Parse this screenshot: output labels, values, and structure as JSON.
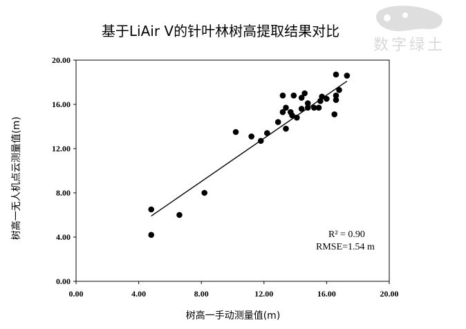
{
  "chart_data": {
    "type": "scatter",
    "title": "基于LiAir V的针叶林树高提取结果对比",
    "xlabel": "树高一手动测量值(m)",
    "ylabel": "树高一无人机点云测量值(m)",
    "xlim": [
      0,
      20
    ],
    "ylim": [
      0,
      20
    ],
    "xticks": [
      "0.00",
      "4.00",
      "8.00",
      "12.00",
      "16.00",
      "20.00"
    ],
    "yticks": [
      "0.00",
      "4.00",
      "8.00",
      "12.00",
      "16.00",
      "20.00"
    ],
    "grid": false,
    "legend": "none",
    "points": [
      {
        "x": 4.8,
        "y": 6.5
      },
      {
        "x": 4.8,
        "y": 4.2
      },
      {
        "x": 6.6,
        "y": 6.0
      },
      {
        "x": 8.2,
        "y": 8.0
      },
      {
        "x": 10.2,
        "y": 13.5
      },
      {
        "x": 11.2,
        "y": 13.1
      },
      {
        "x": 11.8,
        "y": 12.7
      },
      {
        "x": 12.2,
        "y": 13.4
      },
      {
        "x": 12.9,
        "y": 14.4
      },
      {
        "x": 13.2,
        "y": 15.3
      },
      {
        "x": 13.4,
        "y": 15.7
      },
      {
        "x": 13.4,
        "y": 13.8
      },
      {
        "x": 13.2,
        "y": 16.8
      },
      {
        "x": 13.8,
        "y": 15.0
      },
      {
        "x": 13.7,
        "y": 15.3
      },
      {
        "x": 13.9,
        "y": 16.8
      },
      {
        "x": 14.1,
        "y": 14.8
      },
      {
        "x": 14.4,
        "y": 15.6
      },
      {
        "x": 14.4,
        "y": 16.6
      },
      {
        "x": 14.6,
        "y": 17.0
      },
      {
        "x": 14.8,
        "y": 15.7
      },
      {
        "x": 14.8,
        "y": 16.1
      },
      {
        "x": 15.2,
        "y": 15.7
      },
      {
        "x": 15.5,
        "y": 15.7
      },
      {
        "x": 15.6,
        "y": 16.3
      },
      {
        "x": 15.7,
        "y": 16.7
      },
      {
        "x": 16.0,
        "y": 16.5
      },
      {
        "x": 16.5,
        "y": 15.1
      },
      {
        "x": 16.6,
        "y": 16.4
      },
      {
        "x": 16.6,
        "y": 16.8
      },
      {
        "x": 16.8,
        "y": 17.3
      },
      {
        "x": 16.6,
        "y": 18.7
      },
      {
        "x": 17.3,
        "y": 18.6
      }
    ],
    "trendline": {
      "x": [
        4.8,
        17.3
      ],
      "y": [
        5.9,
        18.1
      ]
    },
    "annotations": [
      "R² = 0.90",
      "RMSE=1.54 m"
    ]
  },
  "watermark": {
    "text": "数字绿土"
  },
  "colors": {
    "marker": "#000000",
    "axis": "#000000",
    "watermark": "#d8d8d8"
  }
}
